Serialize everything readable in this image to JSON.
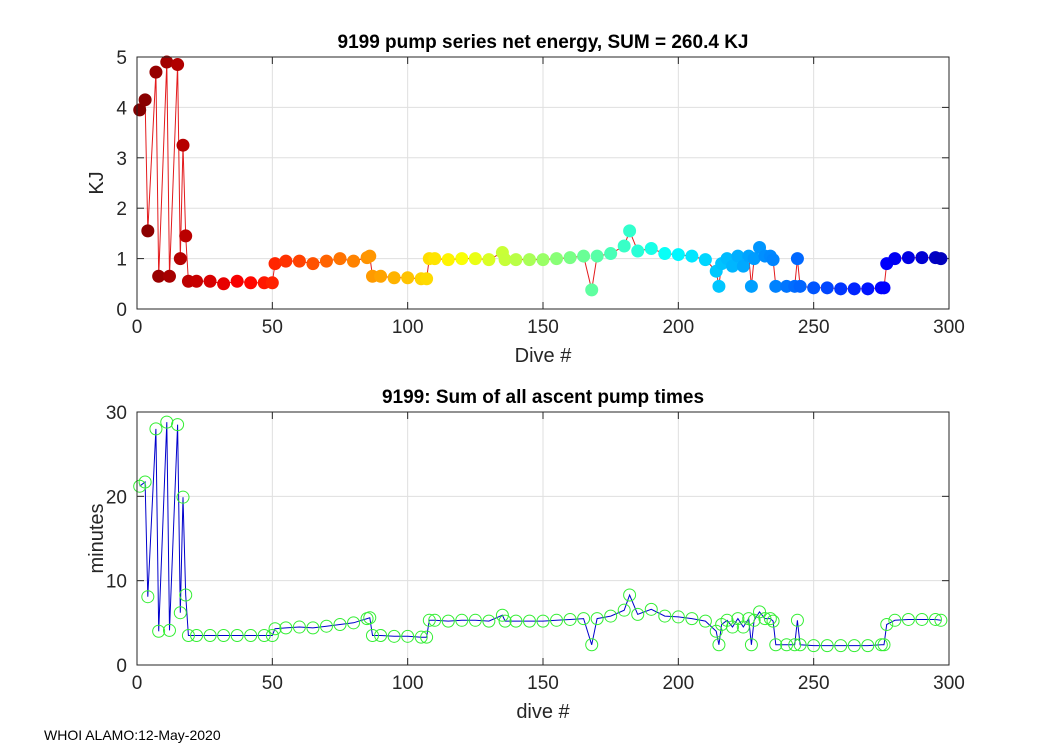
{
  "footer": {
    "text": "WHOI ALAMO:12-May-2020"
  },
  "chart_data": [
    {
      "type": "line",
      "title": "9199 pump series net energy, SUM = 260.4 KJ",
      "xlabel": "Dive #",
      "ylabel": "KJ",
      "xlim": [
        0,
        300
      ],
      "ylim": [
        0,
        5
      ],
      "xticks": [
        0,
        50,
        100,
        150,
        200,
        250,
        300
      ],
      "yticks": [
        0,
        1,
        2,
        3,
        4,
        5
      ],
      "grid": true,
      "line_color": "#e31a1c",
      "marker": "filled circle colored by dive number (jet colormap)",
      "series": [
        {
          "name": "net energy",
          "x": [
            1,
            3,
            4,
            7,
            8,
            11,
            12,
            15,
            16,
            17,
            18,
            19,
            22,
            27,
            32,
            37,
            42,
            47,
            50,
            51,
            55,
            60,
            65,
            70,
            75,
            80,
            85,
            86,
            87,
            90,
            95,
            100,
            105,
            107,
            108,
            110,
            115,
            120,
            125,
            130,
            135,
            136,
            140,
            145,
            150,
            155,
            160,
            165,
            168,
            170,
            175,
            180,
            182,
            185,
            190,
            195,
            200,
            205,
            210,
            214,
            215,
            216,
            218,
            220,
            222,
            224,
            226,
            227,
            228,
            230,
            232,
            234,
            235,
            236,
            240,
            243,
            244,
            245,
            250,
            255,
            260,
            265,
            270,
            275,
            276,
            277,
            280,
            285,
            290,
            295,
            297
          ],
          "y": [
            3.95,
            4.15,
            1.55,
            4.7,
            0.65,
            4.9,
            0.65,
            4.85,
            1.0,
            3.25,
            1.45,
            0.55,
            0.55,
            0.55,
            0.5,
            0.55,
            0.52,
            0.52,
            0.52,
            0.9,
            0.95,
            0.95,
            0.9,
            0.95,
            1.0,
            0.95,
            1.02,
            1.05,
            0.65,
            0.65,
            0.62,
            0.62,
            0.6,
            0.6,
            1.0,
            1.0,
            0.98,
            1.0,
            1.0,
            0.98,
            1.12,
            0.98,
            0.98,
            0.98,
            0.98,
            1.0,
            1.02,
            1.05,
            0.38,
            1.05,
            1.1,
            1.25,
            1.55,
            1.15,
            1.2,
            1.1,
            1.08,
            1.05,
            0.98,
            0.75,
            0.45,
            0.9,
            1.0,
            0.85,
            1.05,
            0.85,
            1.05,
            0.45,
            1.0,
            1.22,
            1.05,
            1.05,
            0.98,
            0.45,
            0.45,
            0.45,
            1.0,
            0.45,
            0.42,
            0.42,
            0.4,
            0.4,
            0.4,
            0.42,
            0.42,
            0.9,
            1.0,
            1.02,
            1.02,
            1.02,
            1.0
          ]
        }
      ]
    },
    {
      "type": "line",
      "title": "9199: Sum of all ascent pump times",
      "xlabel": "dive #",
      "ylabel": "minutes",
      "xlim": [
        0,
        300
      ],
      "ylim": [
        0,
        30
      ],
      "xticks": [
        0,
        50,
        100,
        150,
        200,
        250,
        300
      ],
      "yticks": [
        0,
        10,
        20,
        30
      ],
      "grid": true,
      "line_color": "#0000cc",
      "marker": "open circle",
      "marker_color": "#33ee33",
      "series": [
        {
          "name": "ascent pump time",
          "x": [
            1,
            3,
            4,
            7,
            8,
            11,
            12,
            15,
            16,
            17,
            18,
            19,
            22,
            27,
            32,
            37,
            42,
            47,
            50,
            51,
            55,
            60,
            65,
            70,
            75,
            80,
            85,
            86,
            87,
            90,
            95,
            100,
            105,
            107,
            108,
            110,
            115,
            120,
            125,
            130,
            135,
            136,
            140,
            145,
            150,
            155,
            160,
            165,
            168,
            170,
            175,
            180,
            182,
            185,
            190,
            195,
            200,
            205,
            210,
            214,
            215,
            216,
            218,
            220,
            222,
            224,
            226,
            227,
            228,
            230,
            232,
            234,
            235,
            236,
            240,
            243,
            244,
            245,
            250,
            255,
            260,
            265,
            270,
            275,
            276,
            277,
            280,
            285,
            290,
            295,
            297
          ],
          "y": [
            21.2,
            21.7,
            8.1,
            28,
            4.0,
            28.8,
            4.1,
            28.5,
            6.2,
            19.9,
            8.3,
            3.5,
            3.5,
            3.5,
            3.5,
            3.5,
            3.5,
            3.5,
            3.5,
            4.3,
            4.4,
            4.5,
            4.4,
            4.6,
            4.8,
            5.0,
            5.5,
            5.6,
            3.5,
            3.5,
            3.4,
            3.4,
            3.3,
            3.3,
            5.3,
            5.3,
            5.2,
            5.3,
            5.3,
            5.2,
            5.9,
            5.2,
            5.2,
            5.2,
            5.2,
            5.3,
            5.4,
            5.5,
            2.4,
            5.5,
            5.8,
            6.5,
            8.3,
            6.0,
            6.6,
            5.8,
            5.7,
            5.5,
            5.2,
            4.0,
            2.4,
            4.8,
            5.3,
            4.5,
            5.5,
            4.5,
            5.5,
            2.4,
            5.3,
            6.3,
            5.5,
            5.5,
            5.2,
            2.4,
            2.4,
            2.4,
            5.3,
            2.4,
            2.3,
            2.3,
            2.3,
            2.3,
            2.3,
            2.4,
            2.4,
            4.8,
            5.3,
            5.4,
            5.4,
            5.4,
            5.3
          ]
        }
      ]
    }
  ]
}
